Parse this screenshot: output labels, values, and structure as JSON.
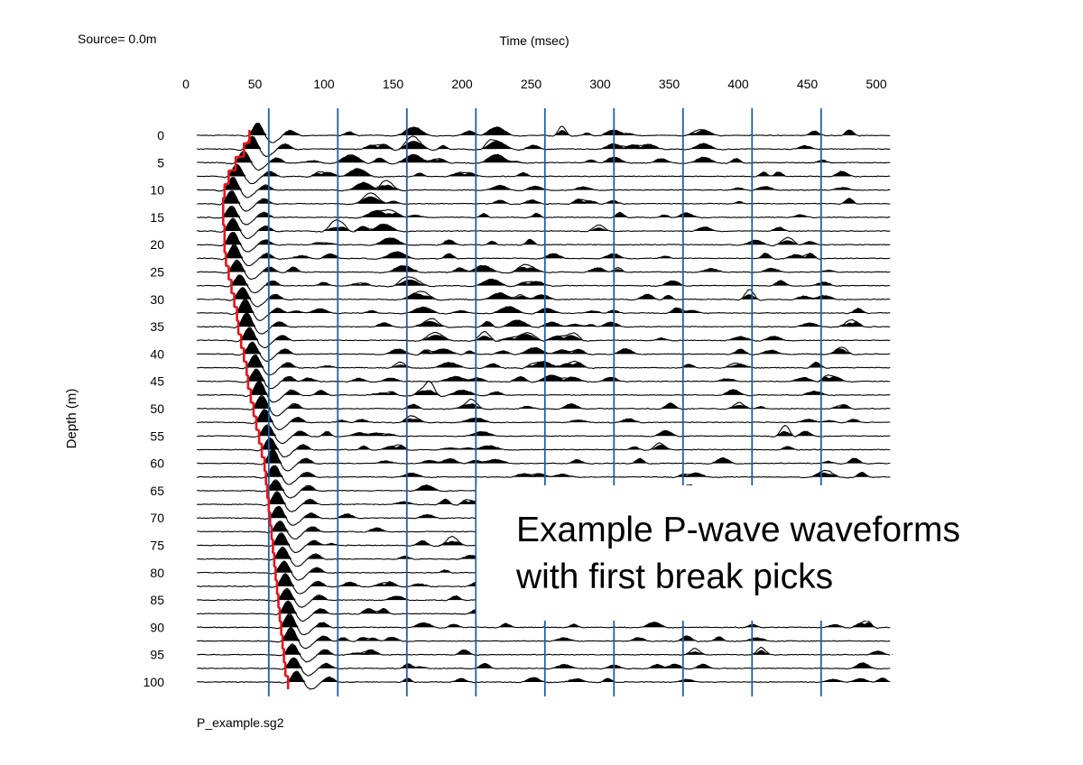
{
  "header": {
    "source_label": "Source=  0.0m"
  },
  "footer": {
    "file_name": "P_example.sg2"
  },
  "callout": {
    "line1": "Example P-wave waveforms",
    "line2": "with first break picks"
  },
  "colors": {
    "gridline": "#1f5fa8",
    "trace": "#000000",
    "pick_line": "#e8141b",
    "background": "#ffffff"
  },
  "chart_data": {
    "type": "line",
    "title": "",
    "xlabel": "Time (msec)",
    "ylabel": "Depth (m)",
    "xlim": [
      0,
      510
    ],
    "ylim": [
      0,
      100
    ],
    "x_ticks": [
      0,
      50,
      100,
      150,
      200,
      250,
      300,
      350,
      400,
      450,
      500
    ],
    "y_ticks": [
      0,
      5,
      10,
      15,
      20,
      25,
      30,
      35,
      40,
      45,
      50,
      55,
      60,
      65,
      70,
      75,
      80,
      85,
      90,
      95,
      100
    ],
    "x_gridlines": [
      60,
      110,
      160,
      210,
      260,
      310,
      360,
      410,
      460
    ],
    "trace_spacing_m": 2.5,
    "grid": true,
    "series": [
      {
        "name": "",
        "depth_m": [
          0,
          2.5,
          5,
          7.5,
          10,
          12.5,
          15,
          17.5,
          20,
          22.5,
          25,
          27.5,
          30,
          32.5,
          35,
          37.5,
          40,
          42.5,
          45,
          47.5,
          50,
          52.5,
          55,
          57.5,
          60,
          62.5,
          65,
          67.5,
          70,
          72.5,
          75,
          77.5,
          80,
          82.5,
          85,
          87.5,
          90,
          92.5,
          95,
          97.5,
          100
        ],
        "time_ms": [
          46,
          42,
          36,
          31,
          28,
          27,
          27,
          28,
          28,
          29,
          31,
          33,
          35,
          37,
          38,
          40,
          42,
          44,
          45,
          47,
          49,
          51,
          53,
          55,
          57,
          58,
          59,
          60,
          61,
          62,
          63,
          64,
          65,
          66,
          67,
          68,
          69,
          70,
          71,
          72,
          74
        ]
      }
    ]
  }
}
